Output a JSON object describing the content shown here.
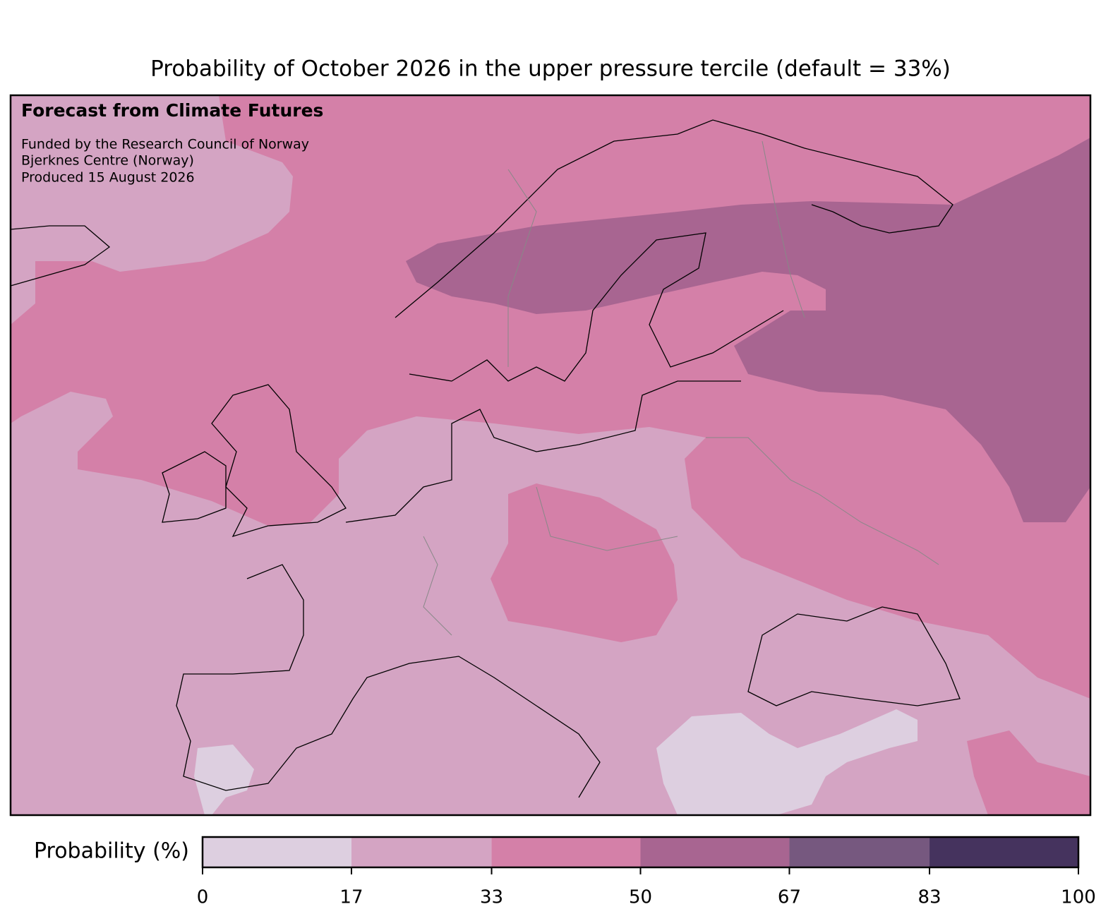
{
  "title": "Probability of October 2026 in the upper pressure tercile (default = 33%)",
  "annotation": {
    "heading": "Forecast from Climate Futures",
    "lines": [
      "Funded by the Research Council of Norway",
      "Bjerknes Centre (Norway)",
      "Produced 15 August 2026"
    ]
  },
  "colorbar": {
    "label": "Probability (%)",
    "ticks": [
      0,
      17,
      33,
      50,
      67,
      83,
      100
    ],
    "colors": [
      "#ddcfe0",
      "#d4a4c3",
      "#d480a8",
      "#a86591",
      "#76587f",
      "#45335e"
    ]
  }
}
